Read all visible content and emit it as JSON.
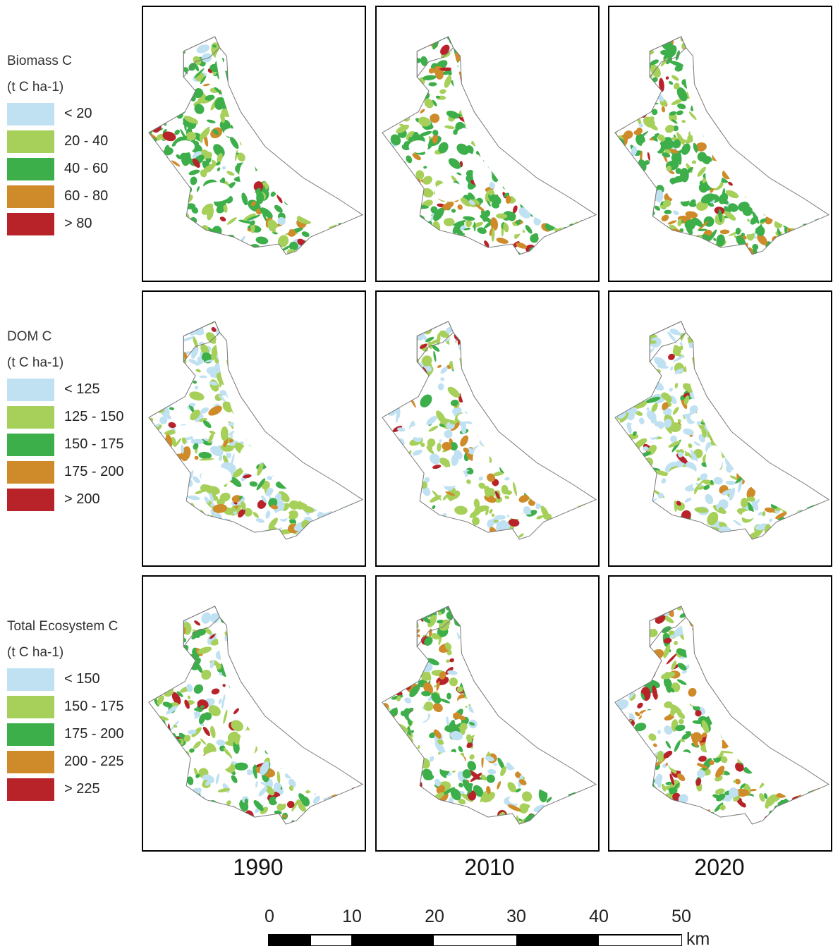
{
  "legends": [
    {
      "title": "Biomass C",
      "units": "(t C ha-1)",
      "classes": [
        {
          "label": "< 20",
          "color": "#bfe1f2"
        },
        {
          "label": "20 - 40",
          "color": "#a6d05a"
        },
        {
          "label": "40 - 60",
          "color": "#3cae4a"
        },
        {
          "label": "60 - 80",
          "color": "#cf8a2a"
        },
        {
          "label": "> 80",
          "color": "#b8232a"
        }
      ]
    },
    {
      "title": "DOM C",
      "units": "(t C ha-1)",
      "classes": [
        {
          "label": "< 125",
          "color": "#bfe1f2"
        },
        {
          "label": "125 - 150",
          "color": "#a6d05a"
        },
        {
          "label": "150 - 175",
          "color": "#3cae4a"
        },
        {
          "label": "175 - 200",
          "color": "#cf8a2a"
        },
        {
          "label": "> 200",
          "color": "#b8232a"
        }
      ]
    },
    {
      "title": "Total Ecosystem C",
      "units": "(t C ha-1)",
      "classes": [
        {
          "label": "< 150",
          "color": "#bfe1f2"
        },
        {
          "label": "150 - 175",
          "color": "#a6d05a"
        },
        {
          "label": "175 - 200",
          "color": "#3cae4a"
        },
        {
          "label": "200 - 225",
          "color": "#cf8a2a"
        },
        {
          "label": "> 225",
          "color": "#b8232a"
        }
      ]
    }
  ],
  "years": [
    "1990",
    "2010",
    "2020"
  ],
  "scale_bar": {
    "ticks": [
      "0",
      "10",
      "20",
      "30",
      "40",
      "50"
    ],
    "unit": "km"
  },
  "map_class_weights": {
    "biomass": [
      [
        0.08,
        0.22,
        0.58,
        0.08,
        0.04
      ],
      [
        0.06,
        0.2,
        0.52,
        0.16,
        0.06
      ],
      [
        0.06,
        0.2,
        0.52,
        0.16,
        0.06
      ]
    ],
    "dom": [
      [
        0.45,
        0.38,
        0.07,
        0.07,
        0.03
      ],
      [
        0.4,
        0.42,
        0.08,
        0.07,
        0.03
      ],
      [
        0.4,
        0.42,
        0.08,
        0.07,
        0.03
      ]
    ],
    "total": [
      [
        0.22,
        0.36,
        0.28,
        0.08,
        0.06
      ],
      [
        0.12,
        0.28,
        0.34,
        0.14,
        0.12
      ],
      [
        0.12,
        0.28,
        0.34,
        0.14,
        0.12
      ]
    ]
  }
}
